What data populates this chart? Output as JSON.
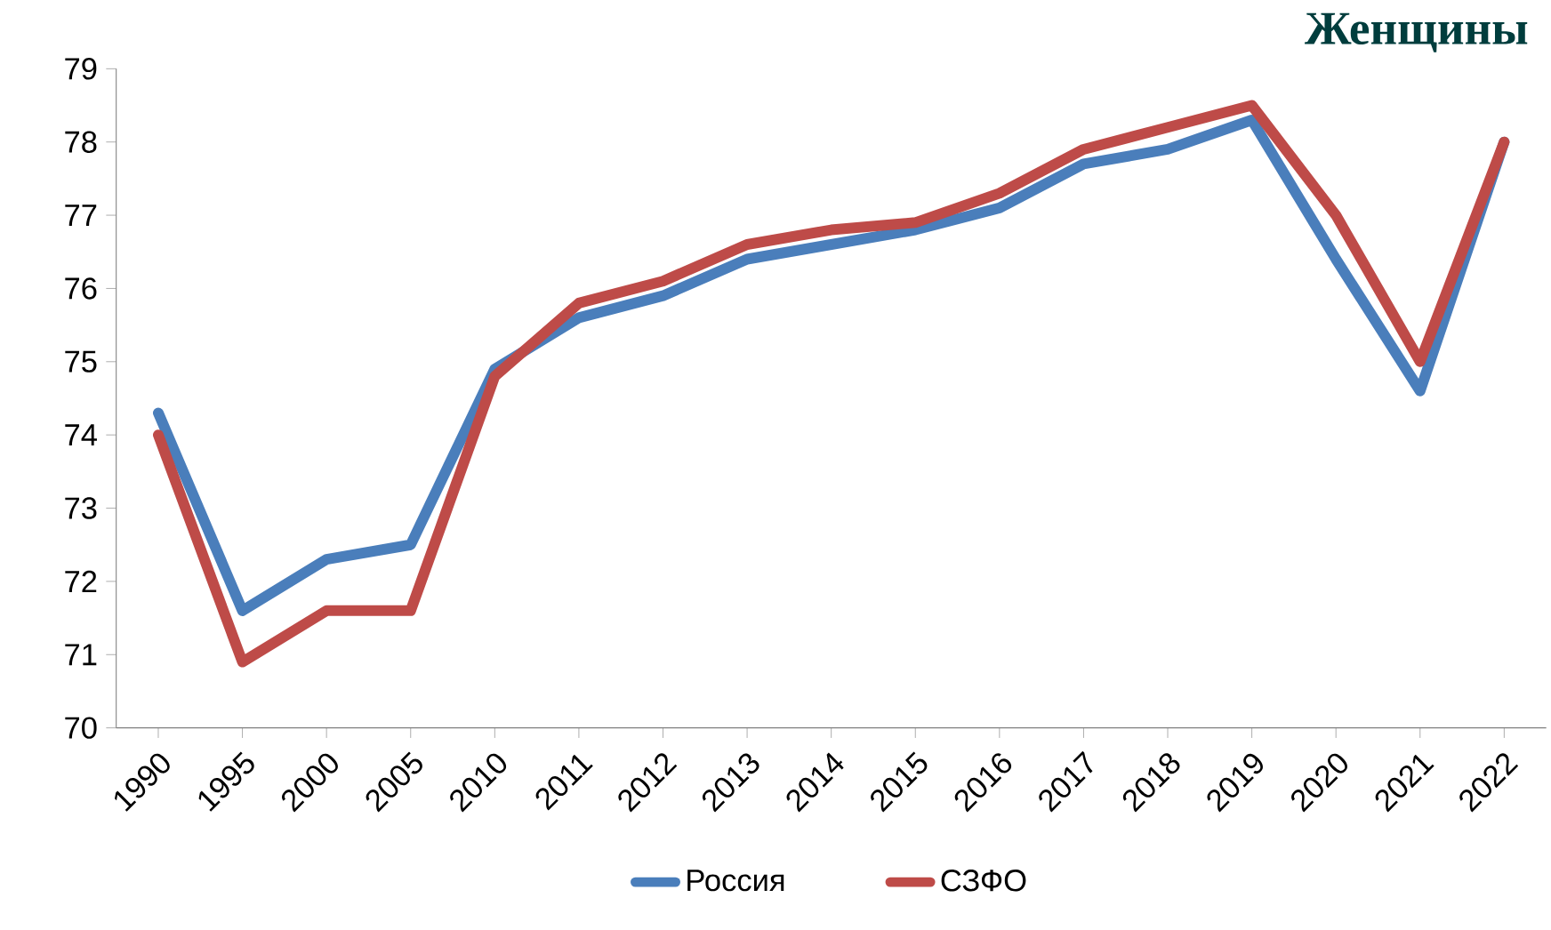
{
  "chart_data": {
    "type": "line",
    "title": "Женщины",
    "categories": [
      "1990",
      "1995",
      "2000",
      "2005",
      "2010",
      "2011",
      "2012",
      "2013",
      "2014",
      "2015",
      "2016",
      "2017",
      "2018",
      "2019",
      "2020",
      "2021",
      "2022"
    ],
    "series": [
      {
        "name": "Россия",
        "color": "#4a7ebb",
        "values": [
          74.3,
          71.6,
          72.3,
          72.5,
          74.9,
          75.6,
          75.9,
          76.4,
          76.6,
          76.8,
          77.1,
          77.7,
          77.9,
          78.3,
          76.4,
          74.6,
          78.0
        ]
      },
      {
        "name": "СЗФО",
        "color": "#be4b48",
        "values": [
          74.0,
          70.9,
          71.6,
          71.6,
          74.8,
          75.8,
          76.1,
          76.6,
          76.8,
          76.9,
          77.3,
          77.9,
          78.2,
          78.5,
          77.0,
          75.0,
          78.0
        ]
      }
    ],
    "ylim": [
      70,
      79
    ],
    "yticks": [
      70,
      71,
      72,
      73,
      74,
      75,
      76,
      77,
      78,
      79
    ],
    "grid": false,
    "legend": "bottom",
    "marker": "none",
    "line_style": "solid"
  }
}
